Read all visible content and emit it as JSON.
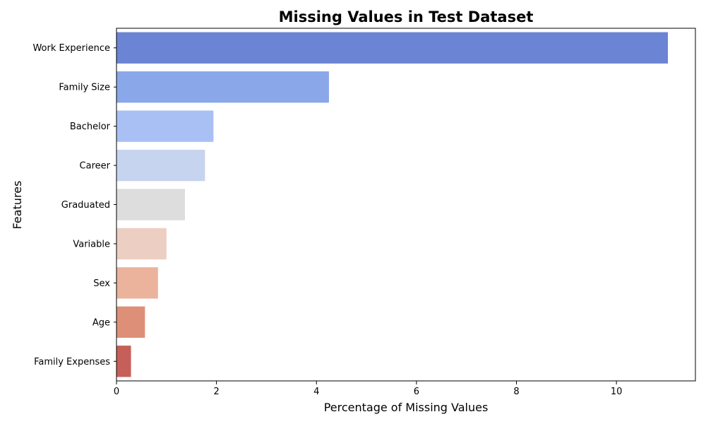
{
  "chart_data": {
    "type": "bar",
    "orientation": "horizontal",
    "title": "Missing Values in Test Dataset",
    "xlabel": "Percentage of Missing Values",
    "ylabel": "Features",
    "categories": [
      "Work Experience",
      "Family  Size",
      "Bachelor",
      "Career",
      "Graduated",
      "Variable",
      "Sex",
      "Age",
      "Family Expenses"
    ],
    "values": [
      11.03,
      4.25,
      1.94,
      1.77,
      1.37,
      1.0,
      0.83,
      0.57,
      0.29
    ],
    "colors": [
      "#6b84d3",
      "#8aa7e9",
      "#a9c0f5",
      "#c7d4ef",
      "#dddddd",
      "#ecceC2",
      "#ebb39c",
      "#de8f78",
      "#c65f59"
    ],
    "xlim": [
      0,
      11.58
    ],
    "xticks": [
      0,
      2,
      4,
      6,
      8,
      10
    ],
    "xtick_labels": [
      "0",
      "2",
      "4",
      "6",
      "8",
      "10"
    ],
    "grid": false,
    "legend": "none"
  }
}
